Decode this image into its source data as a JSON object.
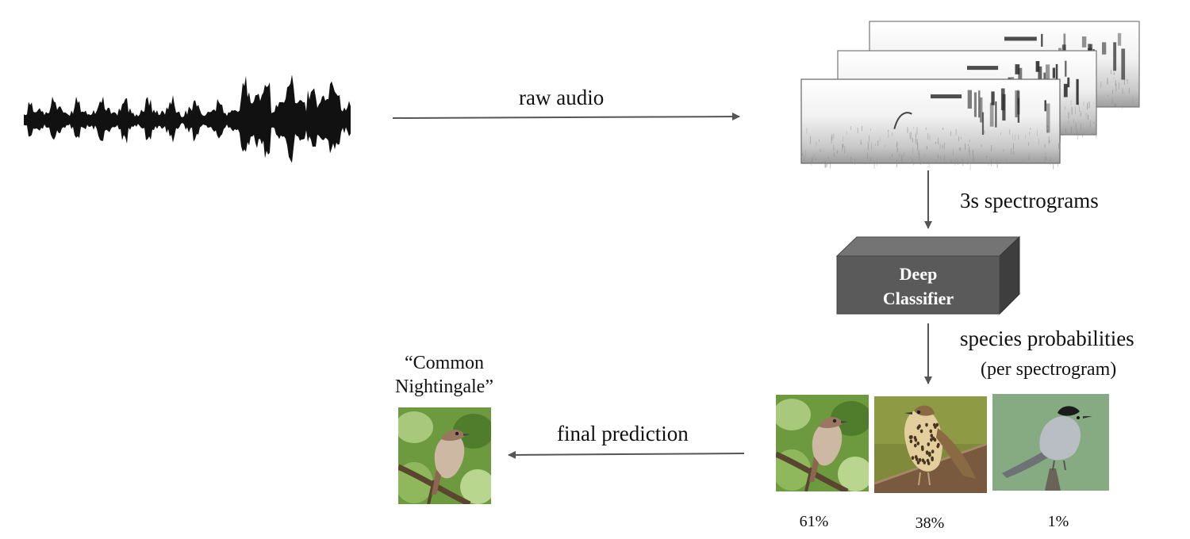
{
  "edges": {
    "raw_audio": "raw audio",
    "spectrograms": "3s spectrograms",
    "species_probabilities": "species probabilities",
    "per_spectrogram": "(per spectrogram)",
    "final_prediction": "final prediction"
  },
  "classifier": {
    "line1": "Deep",
    "line2": "Classifier"
  },
  "prediction": {
    "name_line1": "“Common",
    "name_line2": "Nightingale”"
  },
  "probabilities": [
    {
      "species": "nightingale",
      "value": "61%"
    },
    {
      "species": "song-thrush",
      "value": "38%"
    },
    {
      "species": "blackcap",
      "value": "1%"
    }
  ],
  "colors": {
    "arrow": "#555555",
    "box_front": "#5a5a5a",
    "box_top": "#747474",
    "box_side": "#3e3e3e",
    "box_text": "#ffffff",
    "waveform": "#111111"
  }
}
